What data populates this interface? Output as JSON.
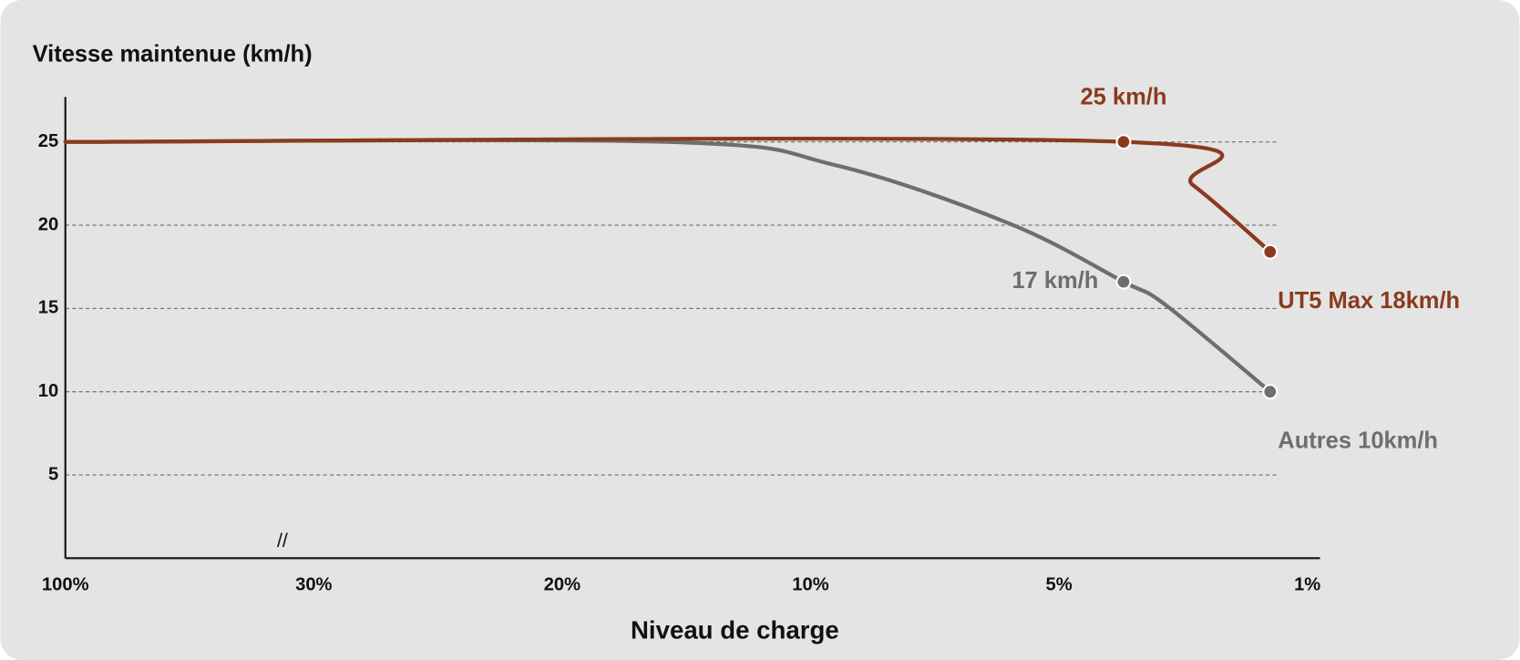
{
  "chart_data": {
    "type": "line",
    "title": "Vitesse maintenue (km/h)",
    "x_label": "Niveau de charge",
    "axis_break": "//",
    "xlim": [
      0,
      5.05
    ],
    "xticks": [
      {
        "value": 0,
        "label": "100%"
      },
      {
        "value": 1,
        "label": "30%"
      },
      {
        "value": 2,
        "label": "20%"
      },
      {
        "value": 3,
        "label": "10%"
      },
      {
        "value": 4,
        "label": "5%"
      },
      {
        "value": 5,
        "label": "1%"
      }
    ],
    "ylim": [
      0,
      27.7
    ],
    "yticks": [
      5,
      10,
      15,
      20,
      25
    ],
    "grid": true,
    "series": [
      {
        "color": "#8b3a1e",
        "x": [
          0,
          4.26,
          4.54,
          4.85
        ],
        "values": [
          25,
          25,
          22.4,
          18.4
        ],
        "value_labels": [
          null,
          "25 km/h",
          null,
          "UT5 Max 18km/h"
        ],
        "label_positions": [
          null,
          "above",
          null,
          "below-right"
        ]
      },
      {
        "color": "#6e6e6e",
        "x": [
          0,
          2.42,
          3.1,
          3.8,
          4.26,
          4.43,
          4.85
        ],
        "values": [
          25,
          25,
          23.6,
          20.1,
          16.6,
          15.2,
          10
        ],
        "value_labels": [
          null,
          null,
          null,
          null,
          "17 km/h",
          null,
          "Autres 10km/h"
        ],
        "label_positions": [
          null,
          null,
          null,
          null,
          "left",
          null,
          "below-right"
        ]
      }
    ]
  }
}
